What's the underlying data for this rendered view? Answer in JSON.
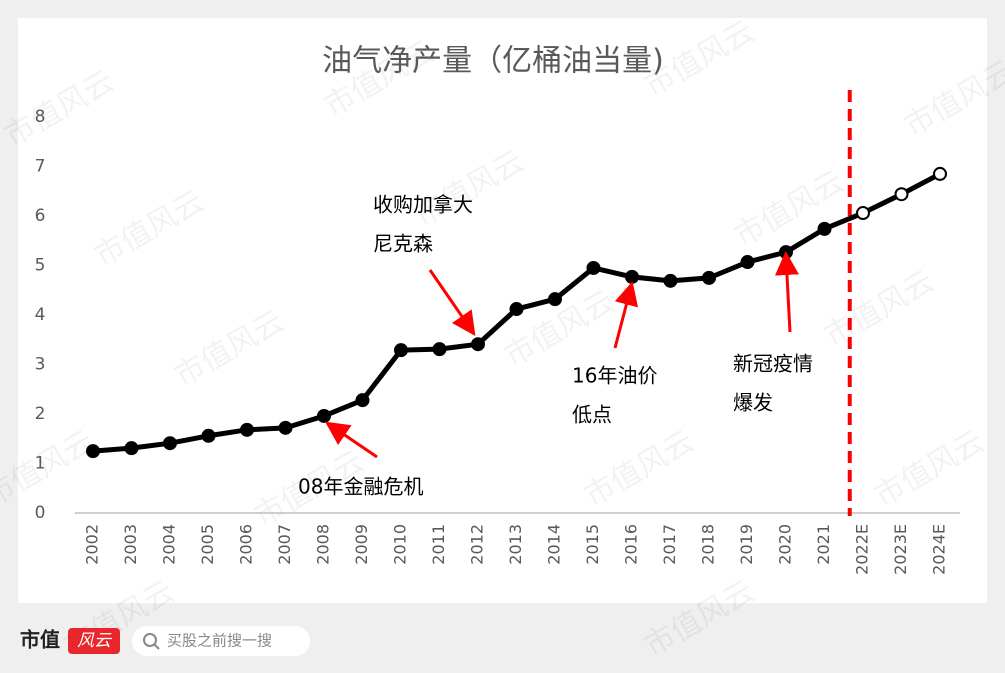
{
  "chart_data": {
    "type": "line",
    "title": "油气净产量（亿桶油当量)",
    "categories": [
      "2002",
      "2003",
      "2004",
      "2005",
      "2006",
      "2007",
      "2008",
      "2009",
      "2010",
      "2011",
      "2012",
      "2013",
      "2014",
      "2015",
      "2016",
      "2017",
      "2018",
      "2019",
      "2020",
      "2021",
      "2022E",
      "2023E",
      "2024E"
    ],
    "values": [
      1.25,
      1.31,
      1.41,
      1.56,
      1.68,
      1.72,
      1.96,
      2.28,
      3.29,
      3.31,
      3.41,
      4.12,
      4.32,
      4.95,
      4.77,
      4.69,
      4.75,
      5.07,
      5.27,
      5.74,
      6.06,
      6.44,
      6.85
    ],
    "color": "#000000",
    "marker_fill": [
      "#000000",
      "#000000",
      "#000000",
      "#000000",
      "#000000",
      "#000000",
      "#000000",
      "#000000",
      "#000000",
      "#000000",
      "#000000",
      "#000000",
      "#000000",
      "#000000",
      "#000000",
      "#000000",
      "#000000",
      "#000000",
      "#000000",
      "#000000",
      "#ffffff",
      "#ffffff",
      "#ffffff"
    ],
    "divider_color": "#ff0000",
    "ylim": [
      0,
      8
    ],
    "yticks": [
      0,
      1,
      2,
      3,
      4,
      5,
      6,
      7,
      8
    ],
    "grid": false,
    "annotations": [
      {
        "lines": [
          "收购加拿大",
          "尼克森"
        ]
      },
      {
        "lines": [
          "08年金融危机"
        ]
      },
      {
        "lines": [
          "16年油价",
          "低点"
        ]
      },
      {
        "lines": [
          "新冠疫情",
          "爆发"
        ]
      }
    ]
  },
  "watermark": "市值风云",
  "footer": {
    "brand": [
      "市值",
      "风云"
    ],
    "search_placeholder": "买股之前搜一搜"
  }
}
